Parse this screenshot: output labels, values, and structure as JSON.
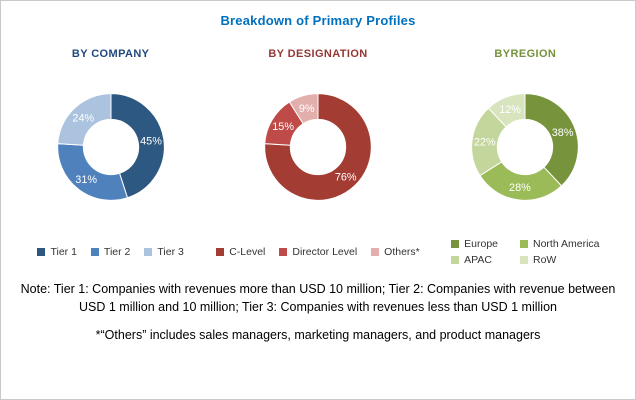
{
  "title": "Breakdown of Primary Profiles",
  "title_color": "#0070C0",
  "chart_data": [
    {
      "type": "pie",
      "header": "BY COMPANY",
      "header_color": "#1F497D",
      "legend_columns": 3,
      "segments": [
        {
          "label": "Tier 1",
          "value": 45,
          "color": "#2C5881"
        },
        {
          "label": "Tier 2",
          "value": 31,
          "color": "#4F81BD"
        },
        {
          "label": "Tier 3",
          "value": 24,
          "color": "#ABC3DF"
        }
      ]
    },
    {
      "type": "pie",
      "header": "BY DESIGNATION",
      "header_color": "#953735",
      "legend_columns": 3,
      "segments": [
        {
          "label": "C-Level",
          "value": 76,
          "color": "#A33C33"
        },
        {
          "label": "Director Level",
          "value": 15,
          "color": "#BE4B48"
        },
        {
          "label": "Others*",
          "value": 9,
          "color": "#E2AFAD"
        }
      ]
    },
    {
      "type": "pie",
      "header": "BYREGION",
      "header_color": "#76923C",
      "legend_columns": 2,
      "segments": [
        {
          "label": "Europe",
          "value": 38,
          "color": "#77933C"
        },
        {
          "label": "North America",
          "value": 28,
          "color": "#9BBB59"
        },
        {
          "label": "APAC",
          "value": 22,
          "color": "#C3D69B"
        },
        {
          "label": "RoW",
          "value": 12,
          "color": "#D7E4BD"
        }
      ]
    }
  ],
  "notes": [
    "Note: Tier 1: Companies with revenues more than USD 10 million; Tier 2: Companies with revenue between USD 1 million and 10 million; Tier 3: Companies with revenues less than USD 1 million",
    "*“Others” includes sales managers, marketing managers, and product managers"
  ]
}
